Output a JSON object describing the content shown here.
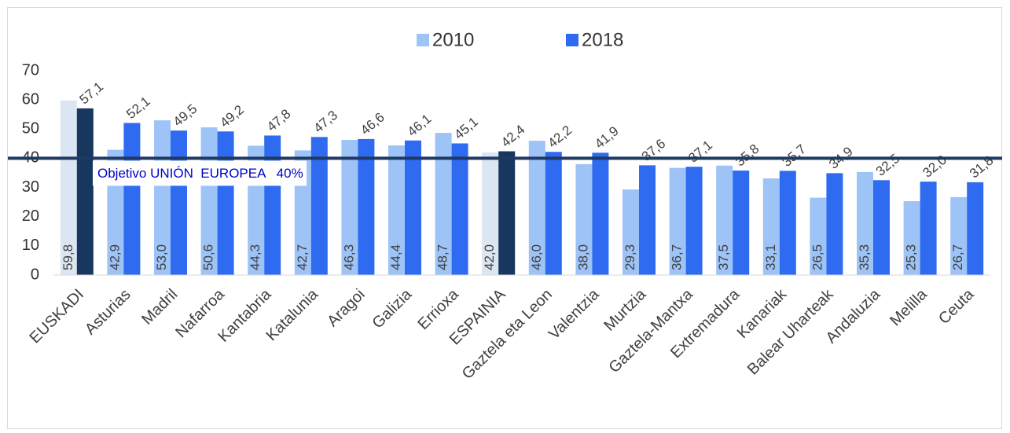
{
  "chart_data": {
    "type": "bar",
    "categories": [
      "EUSKADI",
      "Asturias",
      "Madril",
      "Nafarroa",
      "Kantabria",
      "Katalunia",
      "Aragoi",
      "Galizia",
      "Errioxa",
      "ESPAINIA",
      "Gaztela eta Leon",
      "Valentzia",
      "Murtzia",
      "Gaztela-Mantxa",
      "Extremadura",
      "Kanariak",
      "Balear Uharteak",
      "Andaluzia",
      "Melilla",
      "Ceuta"
    ],
    "series": [
      {
        "name": "2010",
        "color": "#9dc3f7",
        "colors": [
          "#dce6f2",
          "#9dc3f7",
          "#9dc3f7",
          "#9dc3f7",
          "#9dc3f7",
          "#9dc3f7",
          "#9dc3f7",
          "#9dc3f7",
          "#9dc3f7",
          "#dce6f2",
          "#9dc3f7",
          "#9dc3f7",
          "#9dc3f7",
          "#9dc3f7",
          "#9dc3f7",
          "#9dc3f7",
          "#9dc3f7",
          "#9dc3f7",
          "#9dc3f7",
          "#9dc3f7"
        ],
        "values": [
          59.8,
          42.9,
          53.0,
          50.6,
          44.3,
          42.7,
          46.3,
          44.4,
          48.7,
          42.0,
          46.0,
          38.0,
          29.3,
          36.7,
          37.5,
          33.1,
          26.5,
          35.3,
          25.3,
          26.7
        ],
        "value_labels": [
          "59,8",
          "42,9",
          "53,0",
          "50,6",
          "44,3",
          "42,7",
          "46,3",
          "44,4",
          "48,7",
          "42,0",
          "46,0",
          "38,0",
          "29,3",
          "36,7",
          "37,5",
          "33,1",
          "26,5",
          "35,3",
          "25,3",
          "26,7"
        ]
      },
      {
        "name": "2018",
        "color": "#2e6bf0",
        "colors": [
          "#17375e",
          "#2e6bf0",
          "#2e6bf0",
          "#2e6bf0",
          "#2e6bf0",
          "#2e6bf0",
          "#2e6bf0",
          "#2e6bf0",
          "#2e6bf0",
          "#17375e",
          "#2e6bf0",
          "#2e6bf0",
          "#2e6bf0",
          "#2e6bf0",
          "#2e6bf0",
          "#2e6bf0",
          "#2e6bf0",
          "#2e6bf0",
          "#2e6bf0",
          "#2e6bf0"
        ],
        "values": [
          57.1,
          52.1,
          49.5,
          49.2,
          47.8,
          47.3,
          46.6,
          46.1,
          45.1,
          42.4,
          42.2,
          41.9,
          37.6,
          37.1,
          35.8,
          35.7,
          34.9,
          32.5,
          32.0,
          31.8
        ],
        "value_labels": [
          "57,1",
          "52,1",
          "49,5",
          "49,2",
          "47,8",
          "47,3",
          "46,6",
          "46,1",
          "45,1",
          "42,4",
          "42,2",
          "41,9",
          "37,6",
          "37,1",
          "35,8",
          "35,7",
          "34,9",
          "32,5",
          "32,0",
          "31,8"
        ]
      }
    ],
    "ylim": [
      0,
      70
    ],
    "yticks": [
      0,
      10,
      20,
      30,
      40,
      50,
      60,
      70
    ],
    "grid": false,
    "legend": "top",
    "reference_line": {
      "value": 40,
      "text": "Objetivo UNIÓN  EUROPEA   40%",
      "color": "#1f3864"
    }
  }
}
